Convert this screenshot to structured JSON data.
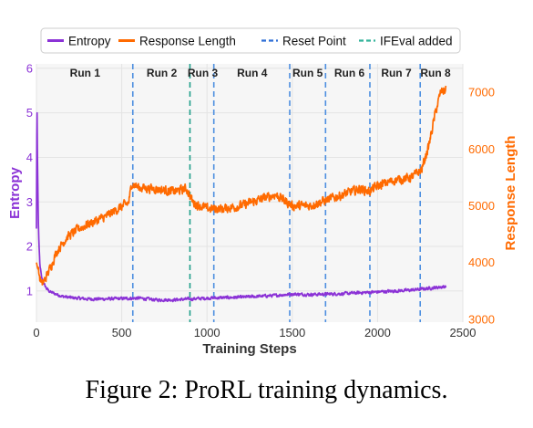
{
  "chart_data": {
    "type": "line",
    "xlabel": "Training Steps",
    "ylabel_left": "Entropy",
    "ylabel_right": "Response Length",
    "xlim": [
      0,
      2500
    ],
    "ylim_left": [
      0.3,
      6.1
    ],
    "ylim_right": [
      2950,
      7500
    ],
    "x_ticks": [
      0,
      500,
      1000,
      1500,
      2000,
      2500
    ],
    "y_ticks_left": [
      1,
      2,
      3,
      4,
      5,
      6
    ],
    "y_ticks_right": [
      3000,
      4000,
      5000,
      6000,
      7000
    ],
    "grid": true,
    "legend_position": "top",
    "legend": [
      {
        "label": "Entropy",
        "style": "solid",
        "color": "#8b32d6"
      },
      {
        "label": "Response Length",
        "style": "solid",
        "color": "#ff6a00"
      },
      {
        "label": "Reset Point",
        "style": "dashed",
        "color": "#2f6fd6"
      },
      {
        "label": "IFEval added",
        "style": "dashed",
        "color": "#33b39a"
      }
    ],
    "series": [
      {
        "name": "Entropy",
        "axis": "left",
        "color": "#8b32d6",
        "x": [
          0,
          3,
          6,
          10,
          15,
          20,
          30,
          45,
          60,
          80,
          100,
          150,
          200,
          300,
          400,
          500,
          600,
          700,
          800,
          900,
          1000,
          1100,
          1200,
          1300,
          1400,
          1500,
          1600,
          1700,
          1800,
          1900,
          2000,
          2100,
          2200,
          2300,
          2350,
          2400
        ],
        "values": [
          2.4,
          5.5,
          4.0,
          2.8,
          2.0,
          1.6,
          1.3,
          1.15,
          1.05,
          0.98,
          0.95,
          0.88,
          0.85,
          0.82,
          0.82,
          0.83,
          0.84,
          0.8,
          0.8,
          0.82,
          0.84,
          0.85,
          0.86,
          0.88,
          0.9,
          0.93,
          0.92,
          0.93,
          0.94,
          0.96,
          0.98,
          1.0,
          1.02,
          1.06,
          1.08,
          1.1
        ],
        "noise": 0.03
      },
      {
        "name": "Response Length",
        "axis": "right",
        "color": "#ff6a00",
        "x": [
          0,
          15,
          30,
          50,
          80,
          120,
          180,
          250,
          320,
          400,
          480,
          540,
          560,
          600,
          700,
          800,
          880,
          920,
          1000,
          1100,
          1200,
          1300,
          1400,
          1500,
          1600,
          1700,
          1800,
          1900,
          1950,
          2000,
          2100,
          2200,
          2260,
          2300,
          2340,
          2370,
          2400
        ],
        "values": [
          4000,
          3800,
          3600,
          3700,
          3900,
          4200,
          4450,
          4600,
          4700,
          4800,
          4950,
          5050,
          5400,
          5320,
          5300,
          5250,
          5300,
          5050,
          4950,
          4950,
          5000,
          5100,
          5200,
          5000,
          5000,
          5100,
          5200,
          5300,
          5250,
          5350,
          5450,
          5500,
          5650,
          6050,
          6650,
          7000,
          7050
        ],
        "noise": 70
      }
    ],
    "run_boundaries": [
      {
        "x": 565,
        "type": "reset"
      },
      {
        "x": 900,
        "type": "ifeval"
      },
      {
        "x": 1040,
        "type": "reset"
      },
      {
        "x": 1485,
        "type": "reset"
      },
      {
        "x": 1695,
        "type": "reset"
      },
      {
        "x": 1955,
        "type": "reset"
      },
      {
        "x": 2250,
        "type": "reset"
      }
    ],
    "run_labels": [
      {
        "label": "Run 1",
        "x": 285
      },
      {
        "label": "Run 2",
        "x": 735
      },
      {
        "label": "Run 3",
        "x": 975
      },
      {
        "label": "Run 4",
        "x": 1265
      },
      {
        "label": "Run 5",
        "x": 1590
      },
      {
        "label": "Run 6",
        "x": 1835
      },
      {
        "label": "Run 7",
        "x": 2110
      },
      {
        "label": "Run 8",
        "x": 2340
      }
    ]
  },
  "caption": "Figure 2: ProRL training dynamics."
}
